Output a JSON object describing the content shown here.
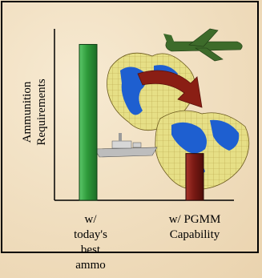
{
  "chart_data": {
    "type": "bar",
    "categories": [
      "w/ today's best ammo",
      "w/ PGMM Capability"
    ],
    "category_labels": [
      [
        "w/",
        "today's",
        "best",
        "ammo"
      ],
      [
        "w/ PGMM",
        "Capability"
      ]
    ],
    "values": [
      100,
      30
    ],
    "ylabel_lines": [
      "Ammunition",
      "Requirements"
    ],
    "ylim": [
      0,
      110
    ],
    "colors": {
      "bar_1": "#2e9a3a",
      "bar_2": "#7a1a14",
      "arrow": "#8a1e14",
      "ocean": "#e6df86",
      "land": "#1e5fd0",
      "frame_border": "#000000"
    },
    "icons": [
      "cargo-aircraft-icon",
      "warship-icon",
      "globe-icon",
      "curved-arrow-icon"
    ]
  }
}
